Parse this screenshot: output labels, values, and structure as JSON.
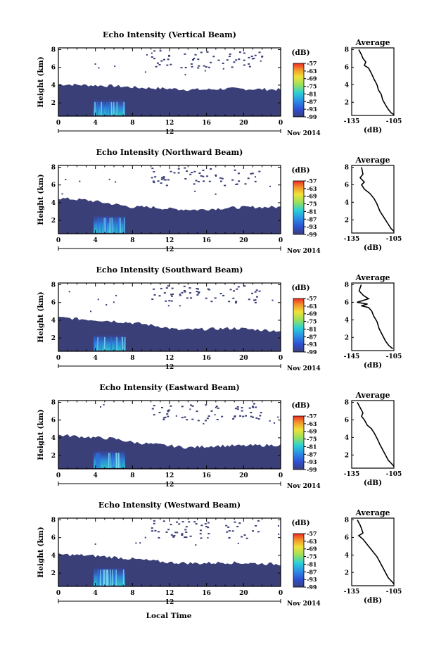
{
  "shared": {
    "y_ticks": [
      "2",
      "4",
      "6",
      "8"
    ],
    "ylabel": "Height (km)",
    "x_ticks": [
      "0",
      "4",
      "8",
      "12",
      "16",
      "20",
      "0"
    ],
    "date_tick": "12",
    "date_suffix": "Nov 2014",
    "xlabel": "Local Time",
    "unit": "(dB)",
    "avg_title": "Average",
    "colorbar_ticks": [
      "-57",
      "-63",
      "-69",
      "-75",
      "-81",
      "-87",
      "-93",
      "-99"
    ],
    "colors": {
      "low": "#3b3f78",
      "high": "#ee2b25",
      "echo_fill": "#3b3f78"
    }
  },
  "chart_data": [
    {
      "type": "heatmap",
      "title": "Echo Intensity (Vertical Beam)",
      "xlim": [
        0,
        24
      ],
      "ylim": [
        0.5,
        8.2
      ],
      "unit_x": "hours",
      "echo_top_km": [
        [
          0,
          4.1
        ],
        [
          3,
          4.0
        ],
        [
          6,
          3.9
        ],
        [
          9,
          3.7
        ],
        [
          12,
          3.6
        ],
        [
          14,
          3.5
        ],
        [
          16,
          3.5
        ],
        [
          18,
          3.6
        ],
        [
          24,
          3.5
        ]
      ],
      "bright_core": {
        "x": [
          3.8,
          7.2
        ],
        "y": [
          0.6,
          2.3
        ]
      },
      "average_profile": {
        "xlim": [
          -135,
          -105
        ],
        "x_ticks": [
          "-135",
          "-105"
        ],
        "points": [
          [
            -130,
            8.0
          ],
          [
            -128,
            7.4
          ],
          [
            -127,
            7.0
          ],
          [
            -125,
            6.6
          ],
          [
            -126,
            6.2
          ],
          [
            -123,
            5.9
          ],
          [
            -121,
            5.3
          ],
          [
            -119,
            4.6
          ],
          [
            -117,
            4.0
          ],
          [
            -116,
            3.4
          ],
          [
            -114,
            2.9
          ],
          [
            -113,
            2.3
          ],
          [
            -111,
            1.7
          ],
          [
            -109,
            1.2
          ],
          [
            -107,
            0.8
          ],
          [
            -105,
            0.6
          ]
        ]
      }
    },
    {
      "type": "heatmap",
      "title": "Echo Intensity (Northward Beam)",
      "xlim": [
        0,
        24
      ],
      "ylim": [
        0.5,
        8.2
      ],
      "unit_x": "hours",
      "echo_top_km": [
        [
          0,
          4.5
        ],
        [
          3,
          4.3
        ],
        [
          5,
          4.0
        ],
        [
          8,
          3.5
        ],
        [
          10,
          3.5
        ],
        [
          12,
          3.3
        ],
        [
          15,
          3.2
        ],
        [
          18,
          3.4
        ],
        [
          21,
          3.5
        ],
        [
          24,
          3.5
        ]
      ],
      "bright_core": {
        "x": [
          3.8,
          7.2
        ],
        "y": [
          0.6,
          2.5
        ]
      },
      "average_profile": {
        "xlim": [
          -135,
          -105
        ],
        "x_ticks": [
          "-135",
          "-105"
        ],
        "points": [
          [
            -128,
            8.0
          ],
          [
            -127,
            7.2
          ],
          [
            -129,
            6.8
          ],
          [
            -126,
            6.3
          ],
          [
            -128,
            6.0
          ],
          [
            -126,
            5.5
          ],
          [
            -122,
            5.0
          ],
          [
            -119,
            4.4
          ],
          [
            -117,
            3.8
          ],
          [
            -115,
            3.0
          ],
          [
            -113,
            2.5
          ],
          [
            -111,
            2.0
          ],
          [
            -109,
            1.5
          ],
          [
            -107,
            1.0
          ],
          [
            -105,
            0.7
          ]
        ]
      }
    },
    {
      "type": "heatmap",
      "title": "Echo Intensity (Southward Beam)",
      "xlim": [
        0,
        24
      ],
      "ylim": [
        0.5,
        8.2
      ],
      "unit_x": "hours",
      "echo_top_km": [
        [
          0,
          4.3
        ],
        [
          3,
          4.1
        ],
        [
          6,
          3.9
        ],
        [
          9,
          3.6
        ],
        [
          11,
          3.3
        ],
        [
          13,
          2.9
        ],
        [
          16,
          3.0
        ],
        [
          19,
          3.1
        ],
        [
          22,
          2.9
        ],
        [
          24,
          2.8
        ]
      ],
      "bright_core": {
        "x": [
          3.8,
          7.2
        ],
        "y": [
          0.6,
          2.3
        ]
      },
      "average_profile": {
        "xlim": [
          -145,
          -105
        ],
        "x_ticks": [
          "-145",
          "-105"
        ],
        "points": [
          [
            -136,
            8.0
          ],
          [
            -138,
            7.3
          ],
          [
            -134,
            6.8
          ],
          [
            -129,
            6.4
          ],
          [
            -140,
            6.0
          ],
          [
            -130,
            5.8
          ],
          [
            -136,
            5.6
          ],
          [
            -129,
            5.4
          ],
          [
            -126,
            5.0
          ],
          [
            -124,
            4.4
          ],
          [
            -121,
            3.8
          ],
          [
            -119,
            3.0
          ],
          [
            -116,
            2.3
          ],
          [
            -113,
            1.6
          ],
          [
            -110,
            1.1
          ],
          [
            -106,
            0.7
          ]
        ]
      }
    },
    {
      "type": "heatmap",
      "title": "Echo Intensity (Eastward Beam)",
      "xlim": [
        0,
        24
      ],
      "ylim": [
        0.5,
        8.2
      ],
      "unit_x": "hours",
      "echo_top_km": [
        [
          0,
          4.3
        ],
        [
          3,
          4.1
        ],
        [
          6,
          3.9
        ],
        [
          8,
          3.5
        ],
        [
          11,
          3.2
        ],
        [
          14,
          2.9
        ],
        [
          17,
          3.1
        ],
        [
          20,
          3.1
        ],
        [
          24,
          3.2
        ]
      ],
      "bright_core": {
        "x": [
          3.8,
          7.2
        ],
        "y": [
          0.6,
          2.5
        ]
      },
      "average_profile": {
        "xlim": [
          -135,
          -105
        ],
        "x_ticks": [
          "-135",
          "-105"
        ],
        "points": [
          [
            -131,
            8.0
          ],
          [
            -129,
            7.4
          ],
          [
            -127,
            6.8
          ],
          [
            -128,
            6.4
          ],
          [
            -126,
            6.0
          ],
          [
            -124,
            5.4
          ],
          [
            -121,
            5.0
          ],
          [
            -119,
            4.5
          ],
          [
            -117,
            3.9
          ],
          [
            -115,
            3.2
          ],
          [
            -113,
            2.6
          ],
          [
            -111,
            2.0
          ],
          [
            -109,
            1.4
          ],
          [
            -106,
            0.9
          ],
          [
            -105,
            0.7
          ]
        ]
      }
    },
    {
      "type": "heatmap",
      "title": "Echo Intensity (Westward Beam)",
      "xlim": [
        0,
        24
      ],
      "ylim": [
        0.5,
        8.2
      ],
      "unit_x": "hours",
      "echo_top_km": [
        [
          0,
          4.1
        ],
        [
          3,
          4.0
        ],
        [
          6,
          3.8
        ],
        [
          9,
          3.5
        ],
        [
          12,
          3.2
        ],
        [
          15,
          3.1
        ],
        [
          18,
          3.2
        ],
        [
          21,
          3.1
        ],
        [
          24,
          3.0
        ]
      ],
      "bright_core": {
        "x": [
          3.8,
          7.2
        ],
        "y": [
          0.6,
          2.6
        ]
      },
      "average_profile": {
        "xlim": [
          -135,
          -105
        ],
        "x_ticks": [
          "-135",
          "-105"
        ],
        "points": [
          [
            -131,
            8.0
          ],
          [
            -129,
            7.4
          ],
          [
            -128,
            7.0
          ],
          [
            -127,
            6.5
          ],
          [
            -130,
            6.2
          ],
          [
            -127,
            5.8
          ],
          [
            -123,
            5.0
          ],
          [
            -120,
            4.4
          ],
          [
            -117,
            3.8
          ],
          [
            -115,
            3.2
          ],
          [
            -113,
            2.6
          ],
          [
            -111,
            2.0
          ],
          [
            -109,
            1.4
          ],
          [
            -106,
            0.9
          ],
          [
            -105,
            0.7
          ]
        ]
      }
    }
  ]
}
